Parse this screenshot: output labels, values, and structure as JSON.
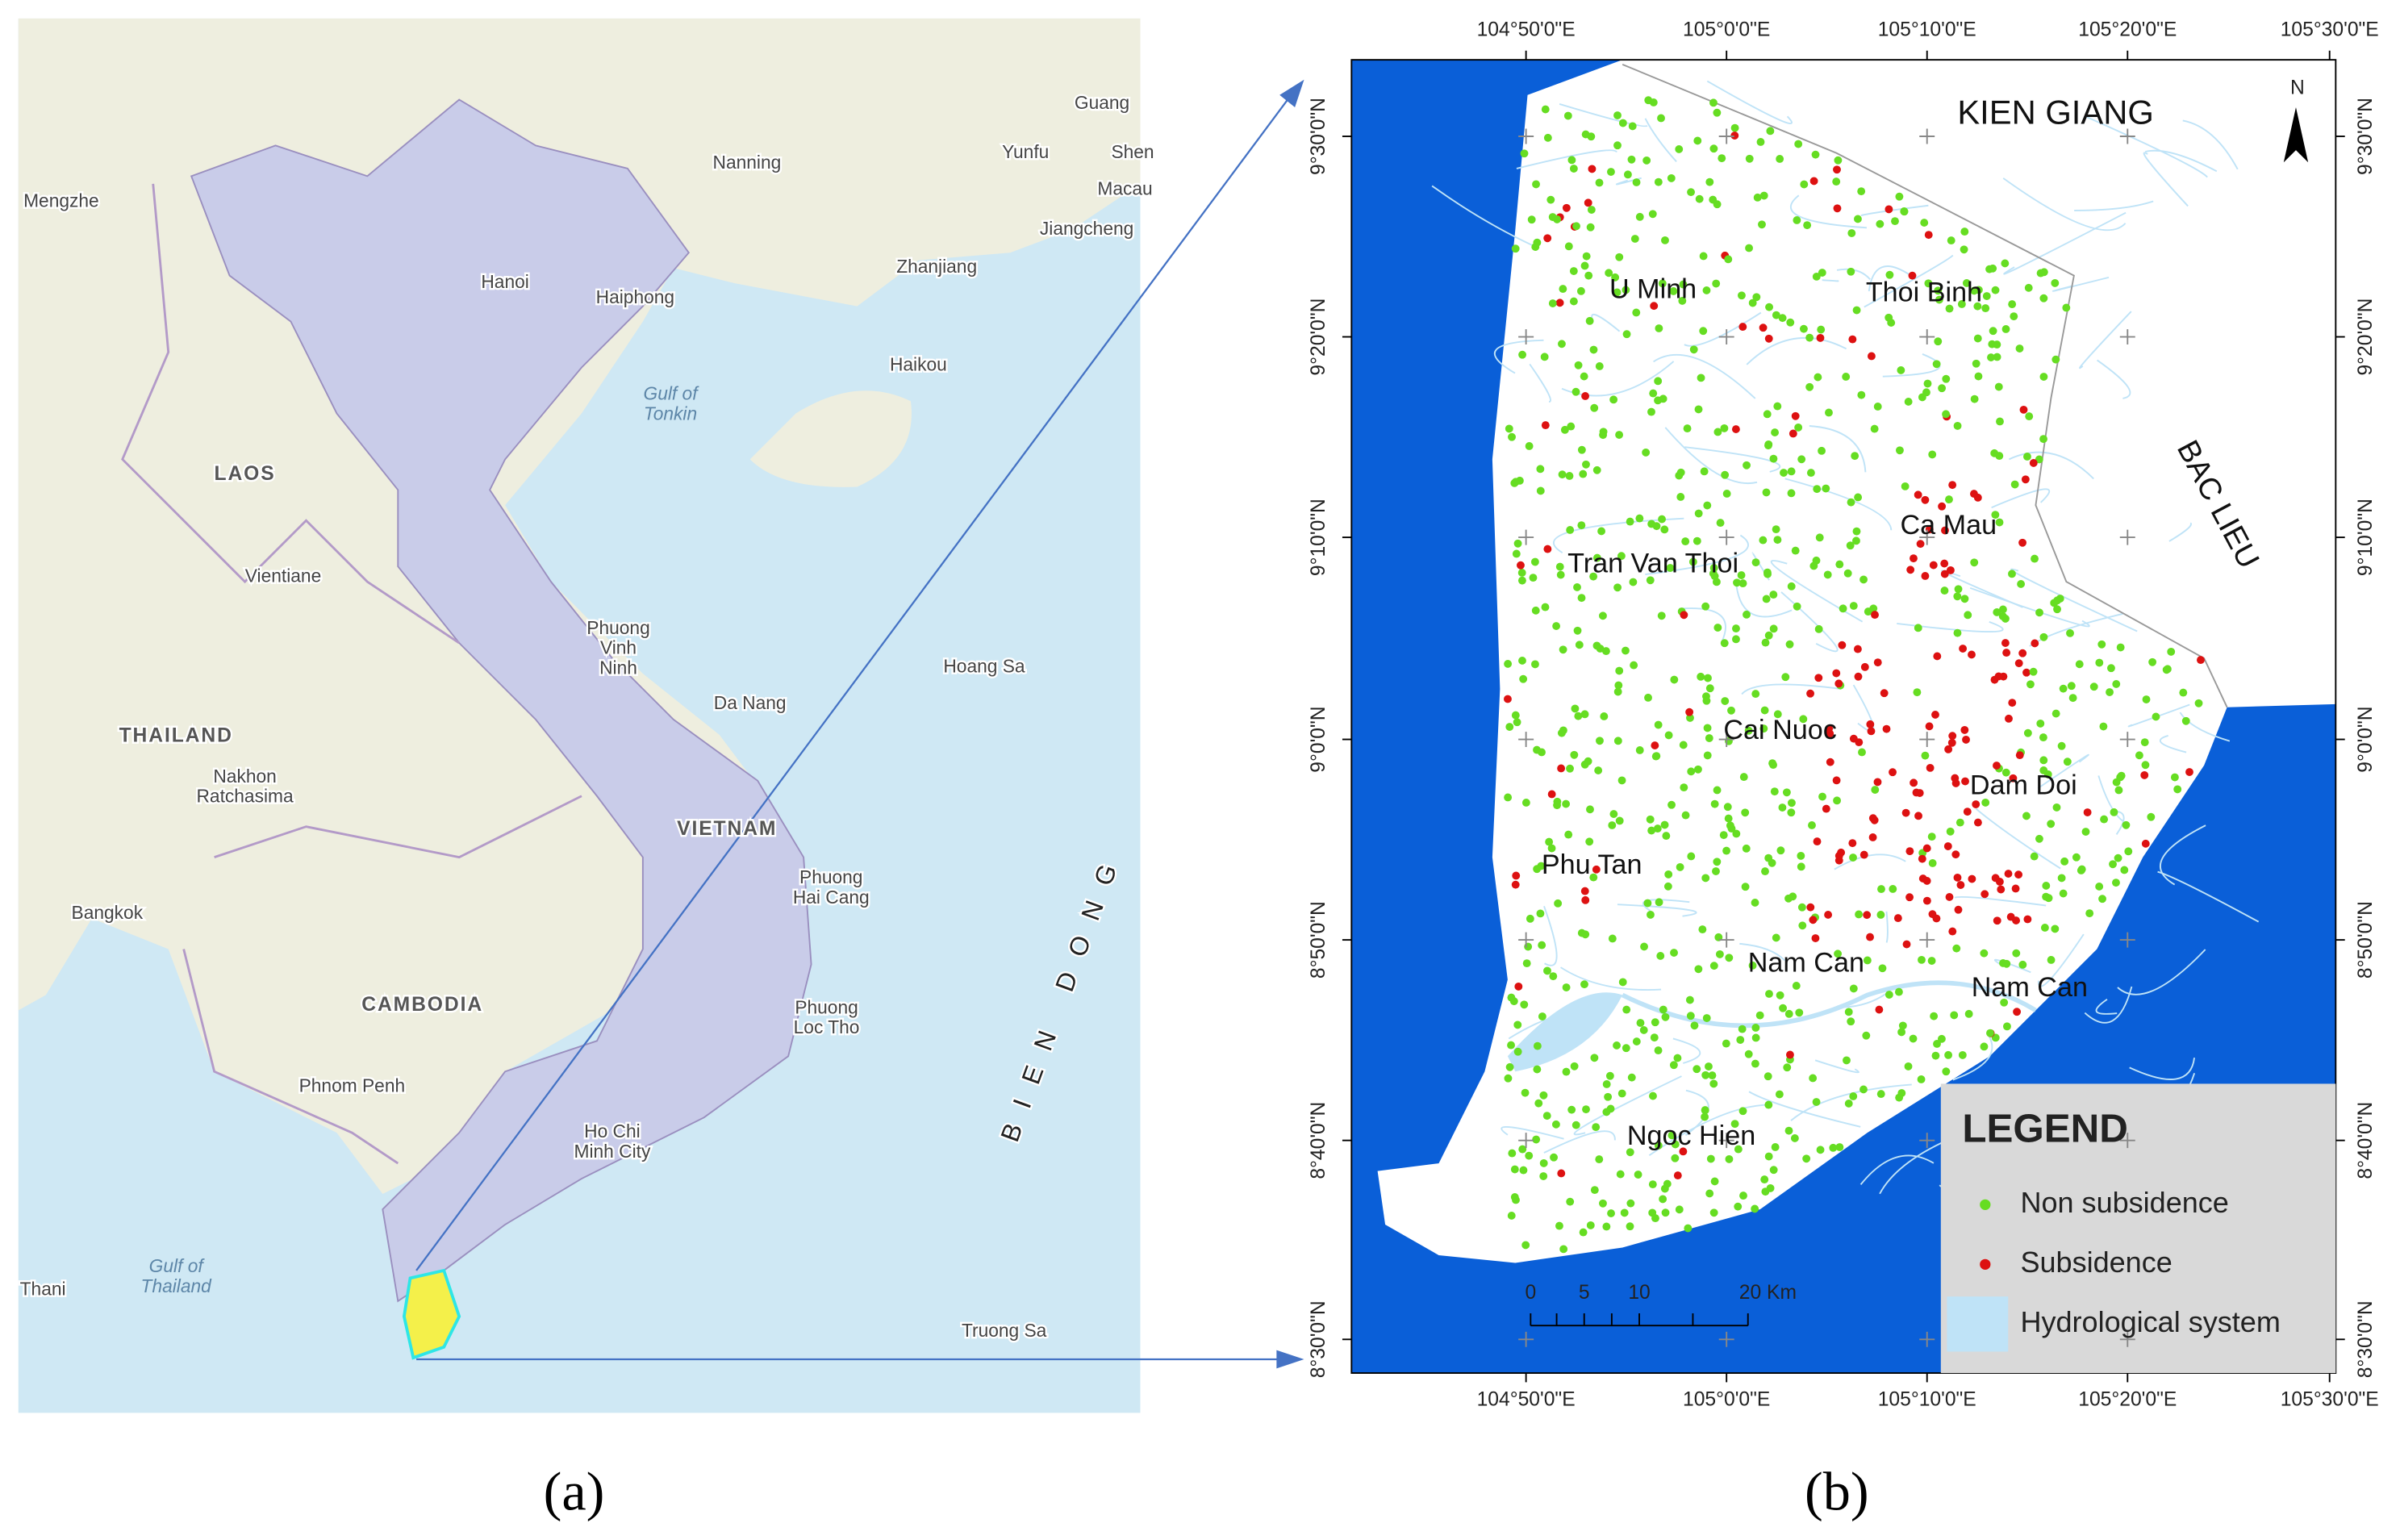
{
  "panel_a": {
    "labels": [
      {
        "lines": [
          "Nanning"
        ]
      },
      {
        "lines": [
          "Guang"
        ]
      },
      {
        "lines": [
          "Yunfu"
        ]
      },
      {
        "lines": [
          "Shen"
        ]
      },
      {
        "lines": [
          "Macau"
        ]
      },
      {
        "lines": [
          "Jiangcheng"
        ]
      },
      {
        "lines": [
          "Mengzhe"
        ]
      },
      {
        "lines": [
          "Zhanjiang"
        ]
      },
      {
        "lines": [
          "Hanoi"
        ]
      },
      {
        "lines": [
          "Haiphong"
        ]
      },
      {
        "lines": [
          "Haikou"
        ]
      },
      {
        "lines": [
          "Gulf of",
          "Tonkin"
        ]
      },
      {
        "lines": [
          "LAOS"
        ]
      },
      {
        "lines": [
          "Vientiane"
        ]
      },
      {
        "lines": [
          "Phuong",
          "Vinh",
          "Ninh"
        ]
      },
      {
        "lines": [
          "Da Nang"
        ]
      },
      {
        "lines": [
          "Hoang Sa"
        ]
      },
      {
        "lines": [
          "THAILAND"
        ]
      },
      {
        "lines": [
          "Nakhon",
          "Ratchasima"
        ]
      },
      {
        "lines": [
          "VIETNAM"
        ]
      },
      {
        "lines": [
          "Phuong",
          "Hai Cang"
        ]
      },
      {
        "lines": [
          "Bangkok"
        ]
      },
      {
        "lines": [
          "CAMBODIA"
        ]
      },
      {
        "lines": [
          "Phuong",
          "Loc Tho"
        ]
      },
      {
        "lines": [
          "Phnom Penh"
        ]
      },
      {
        "lines": [
          "Ho Chi",
          "Minh City"
        ]
      },
      {
        "lines": [
          "BIEN DONG"
        ]
      },
      {
        "lines": [
          "Gulf of",
          "Thailand"
        ]
      },
      {
        "lines": [
          "Thani"
        ]
      },
      {
        "lines": [
          "Truong Sa"
        ]
      }
    ],
    "caption": "(a)"
  },
  "panel_b": {
    "lon_ticks": [
      "104°50'0\"E",
      "105°0'0\"E",
      "105°10'0\"E",
      "105°20'0\"E",
      "105°30'0\"E"
    ],
    "lat_ticks": [
      "8°30'0\"N",
      "8°40'0\"N",
      "8°50'0\"N",
      "9°0'0\"N",
      "9°10'0\"N",
      "9°20'0\"N",
      "9°30'0\"N"
    ],
    "labels": [
      "KIEN GIANG",
      "U Minh",
      "Thoi Binh",
      "BAC LIEU",
      "Ca Mau",
      "Tran Van Thoi",
      "Cai Nuoc",
      "Dam Doi",
      "Phu Tan",
      "Nam Can",
      "Nam Can",
      "Ngoc Hien"
    ],
    "north": "N",
    "scale_labels": [
      "0",
      "5",
      "10",
      "20 Km"
    ],
    "legend": {
      "title": "LEGEND",
      "items": [
        {
          "label": "Non subsidence",
          "color": "#66dd22"
        },
        {
          "label": "Subsidence",
          "color": "#dd1111"
        },
        {
          "label": "Hydrological system",
          "color": "#bfe3f7"
        }
      ]
    },
    "caption": "(b)"
  }
}
